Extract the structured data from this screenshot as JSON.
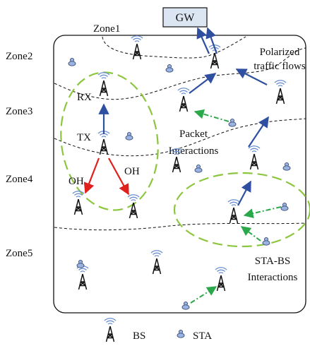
{
  "gateway": {
    "label": "GW"
  },
  "zones": [
    "Zone1",
    "Zone2",
    "Zone3",
    "Zone4",
    "Zone5"
  ],
  "annotations": {
    "polarized_line1": "Polarized",
    "polarized_line2": "traffic flows",
    "packet_line1": "Packet",
    "packet_line2": "Interactions",
    "stabs_line1": "STA-BS",
    "stabs_line2": "Interactions",
    "rx": "RX",
    "tx": "TX",
    "oh_left": "OH",
    "oh_right": "OH"
  },
  "legend": {
    "bs": "BS",
    "sta": "STA"
  },
  "colors": {
    "bs_blue": "#6a8fd0",
    "arrow_blue": "#2f4fa0",
    "arrow_red": "#e0201c",
    "green_dash": "#8cc63f",
    "green_arrow": "#2aa84a",
    "sta_fill": "#9bb3e0",
    "gw_fill": "#dce6f2"
  }
}
